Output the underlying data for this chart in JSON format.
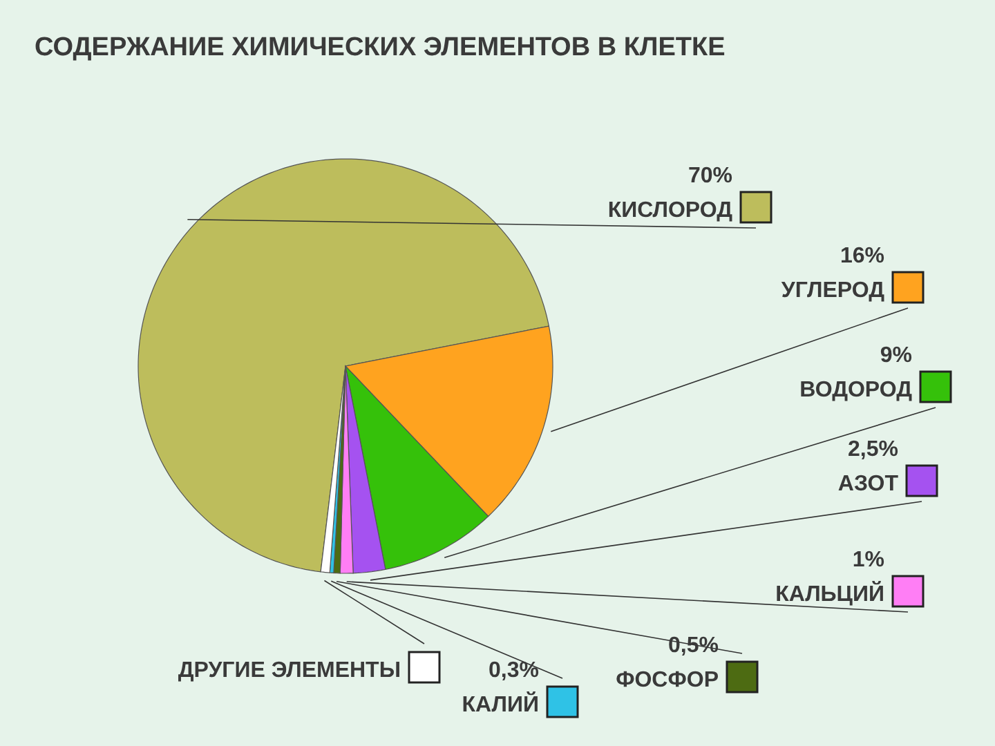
{
  "chart_data": {
    "type": "pie",
    "title": "СОДЕРЖАНИЕ ХИМИЧЕСКИХ ЭЛЕМЕНТОВ В КЛЕТКЕ",
    "categories": [
      "КИСЛОРОД",
      "УГЛЕРОД",
      "ВОДОРОД",
      "АЗОТ",
      "КАЛЬЦИЙ",
      "ФОСФОР",
      "КАЛИЙ",
      "ДРУГИЕ ЭЛЕМЕНТЫ"
    ],
    "values": [
      70,
      16,
      9,
      2.5,
      1,
      0.5,
      0.3,
      0.7
    ],
    "value_labels": [
      "70%",
      "16%",
      "9%",
      "2,5%",
      "1%",
      "0,5%",
      "0,3%",
      null
    ],
    "colors": [
      "#bdbd5c",
      "#ffa31f",
      "#35c10a",
      "#a552f0",
      "#ff7ef5",
      "#4d6b12",
      "#2fc2e6",
      "#ffffff"
    ],
    "legend": "right"
  }
}
